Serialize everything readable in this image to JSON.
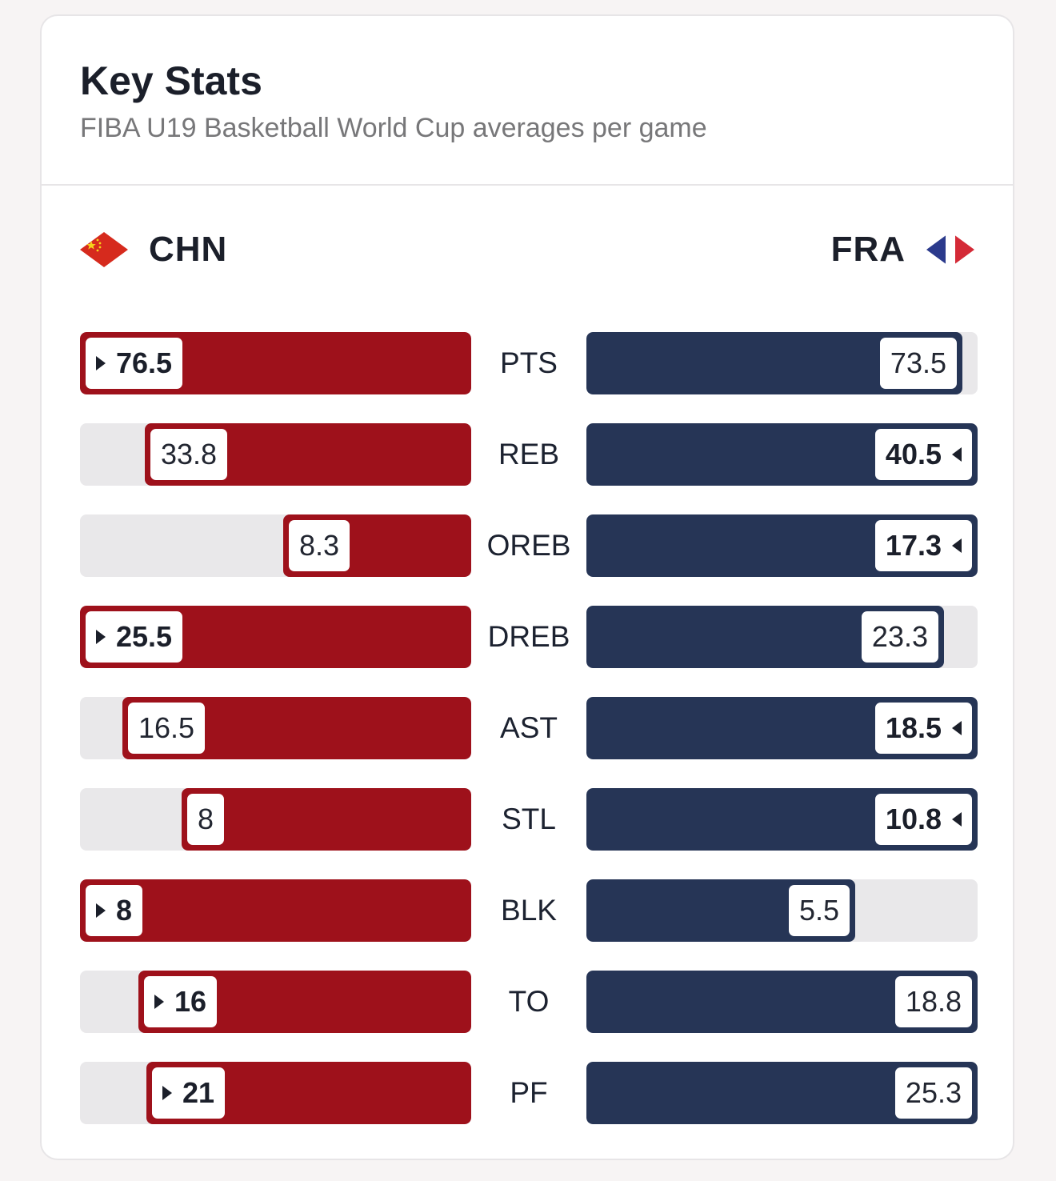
{
  "header": {
    "title": "Key Stats",
    "subtitle": "FIBA U19 Basketball World Cup averages per game"
  },
  "teams": {
    "left": {
      "name": "CHN",
      "flag_icon": "china-flag-icon",
      "color": "#9e111b"
    },
    "right": {
      "name": "FRA",
      "flag_icon": "france-flag-icon",
      "color": "#263556"
    }
  },
  "chart_data": {
    "type": "bar",
    "categories": [
      "PTS",
      "REB",
      "OREB",
      "DREB",
      "AST",
      "STL",
      "BLK",
      "TO",
      "PF"
    ],
    "series": [
      {
        "name": "CHN",
        "values": [
          76.5,
          33.8,
          8.3,
          25.5,
          16.5,
          8,
          8,
          16,
          21
        ]
      },
      {
        "name": "FRA",
        "values": [
          73.5,
          40.5,
          17.3,
          23.3,
          18.5,
          10.8,
          5.5,
          18.8,
          25.3
        ]
      }
    ],
    "value_labels": {
      "CHN": [
        "76.5",
        "33.8",
        "8.3",
        "25.5",
        "16.5",
        "8",
        "8",
        "16",
        "21"
      ],
      "FRA": [
        "73.5",
        "40.5",
        "17.3",
        "23.3",
        "18.5",
        "10.8",
        "5.5",
        "18.8",
        "25.3"
      ]
    },
    "leader": [
      "CHN",
      "FRA",
      "FRA",
      "CHN",
      "FRA",
      "FRA",
      "CHN",
      "CHN",
      "CHN"
    ],
    "lower_is_better": [
      "TO",
      "PF"
    ]
  }
}
